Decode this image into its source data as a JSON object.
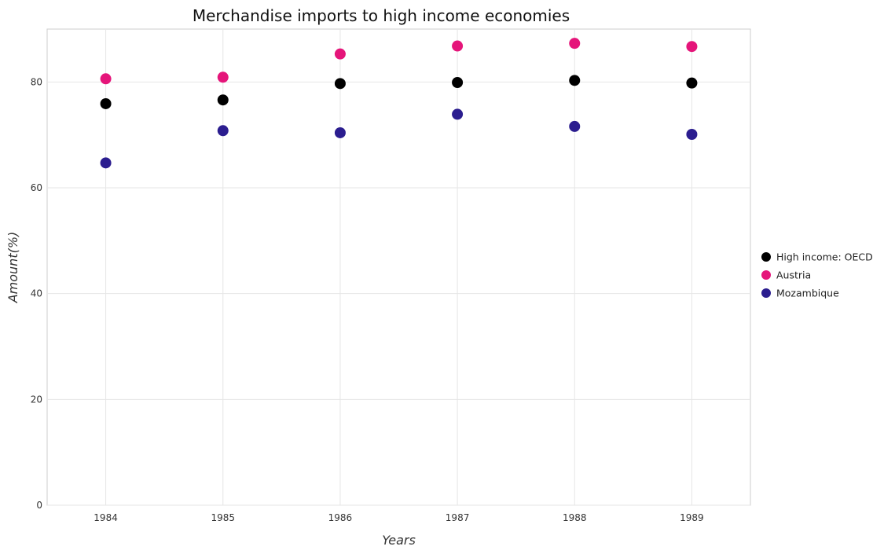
{
  "chart_data": {
    "type": "scatter",
    "title": "Merchandise imports to high income economies",
    "xlabel": "Years",
    "ylabel": "Amount(%)",
    "categories": [
      "1984",
      "1985",
      "1986",
      "1987",
      "1988",
      "1989"
    ],
    "ylim": [
      0,
      90
    ],
    "yticks": [
      0,
      20,
      40,
      60,
      80
    ],
    "grid": true,
    "legend_position": "right",
    "series": [
      {
        "name": "High income: OECD",
        "color": "#000000",
        "values": [
          75.9,
          76.6,
          79.7,
          79.9,
          80.3,
          79.8
        ]
      },
      {
        "name": "Austria",
        "color": "#e5157a",
        "values": [
          80.6,
          80.9,
          85.3,
          86.8,
          87.3,
          86.7
        ]
      },
      {
        "name": "Mozambique",
        "color": "#2b1d8f",
        "values": [
          64.7,
          70.8,
          70.4,
          73.9,
          71.6,
          70.1
        ]
      }
    ]
  }
}
